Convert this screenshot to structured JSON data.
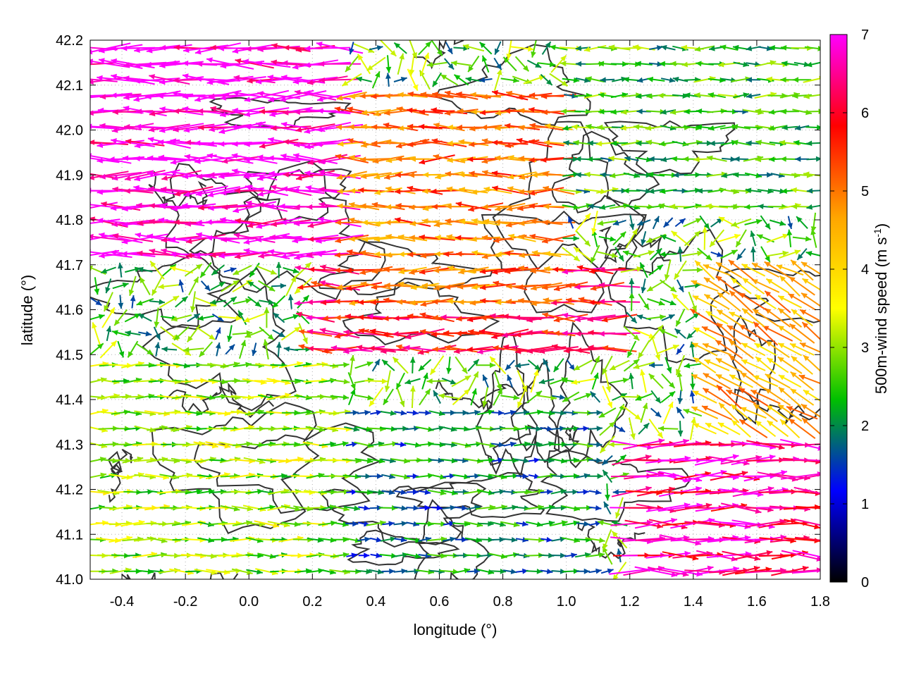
{
  "chart_data": {
    "type": "vector-field",
    "xlabel": "longitude (°)",
    "ylabel": "latitude (°)",
    "xlim": [
      -0.5,
      1.8
    ],
    "ylim": [
      41.0,
      42.2
    ],
    "x_ticks": [
      -0.4,
      -0.2,
      0.0,
      0.2,
      0.4,
      0.6,
      0.8,
      1.0,
      1.2,
      1.4,
      1.6,
      1.8
    ],
    "x_tick_labels": [
      "-0.4",
      "-0.2",
      "0.0",
      "0.2",
      "0.4",
      "0.6",
      "0.8",
      "1.0",
      "1.2",
      "1.4",
      "1.6",
      "1.8"
    ],
    "y_ticks": [
      41.0,
      41.1,
      41.2,
      41.3,
      41.4,
      41.5,
      41.6,
      41.7,
      41.8,
      41.9,
      42.0,
      42.1,
      42.2
    ],
    "y_tick_labels": [
      "41.0",
      "41.1",
      "41.2",
      "41.3",
      "41.4",
      "41.5",
      "41.6",
      "41.7",
      "41.8",
      "41.9",
      "42.0",
      "42.1",
      "42.2"
    ],
    "grid": "dotted",
    "colorbar": {
      "label": "500m-wind speed (m s",
      "label_superscript": "-1",
      "label_suffix": ")",
      "range": [
        0,
        7
      ],
      "ticks": [
        0,
        1,
        2,
        3,
        4,
        5,
        6,
        7
      ],
      "tick_labels": [
        "0",
        "1",
        "2",
        "3",
        "4",
        "5",
        "6",
        "7"
      ],
      "colors": [
        "#000000",
        "#0000ff",
        "#00c000",
        "#ffff00",
        "#ffa500",
        "#ff0000",
        "#ff00ff"
      ]
    },
    "wind_regions": [
      {
        "region": "northwest",
        "lon": [
          -0.5,
          0.3
        ],
        "lat": [
          41.7,
          42.2
        ],
        "direction": "westward",
        "speed": 7
      },
      {
        "region": "north-central",
        "lon": [
          0.3,
          1.0
        ],
        "lat": [
          41.6,
          42.1
        ],
        "direction": "westward",
        "speed": 5
      },
      {
        "region": "northeast",
        "lon": [
          1.0,
          1.8
        ],
        "lat": [
          41.8,
          42.2
        ],
        "direction": "mixed",
        "speed": 2.5
      },
      {
        "region": "center",
        "lon": [
          0.2,
          1.2
        ],
        "lat": [
          41.5,
          41.7
        ],
        "direction": "westward",
        "speed": 6
      },
      {
        "region": "southwest",
        "lon": [
          -0.5,
          0.3
        ],
        "lat": [
          41.0,
          41.5
        ],
        "direction": "eastward",
        "speed": 3
      },
      {
        "region": "south-central",
        "lon": [
          0.3,
          1.1
        ],
        "lat": [
          41.0,
          41.4
        ],
        "direction": "eastward",
        "speed": 2
      },
      {
        "region": "southeast",
        "lon": [
          1.2,
          1.8
        ],
        "lat": [
          41.0,
          41.3
        ],
        "direction": "eastward",
        "speed": 6.5
      },
      {
        "region": "east",
        "lon": [
          1.4,
          1.8
        ],
        "lat": [
          41.3,
          41.7
        ],
        "direction": "northwestward",
        "speed": 4.5
      }
    ]
  }
}
